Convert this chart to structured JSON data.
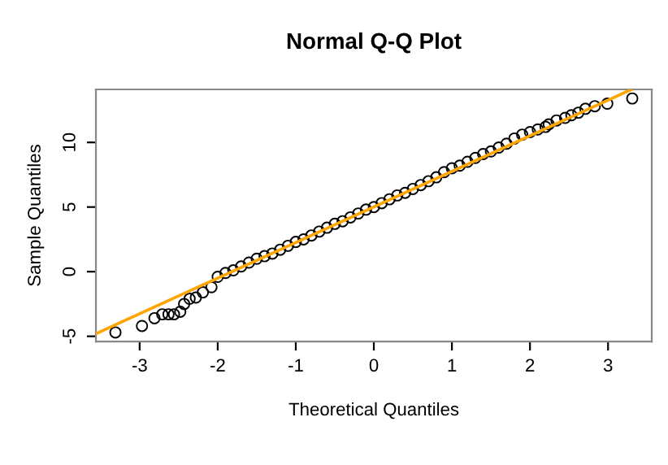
{
  "chart_data": {
    "type": "scatter",
    "title": "Normal Q-Q Plot",
    "xlabel": "Theoretical Quantiles",
    "ylabel": "Sample Quantiles",
    "xlim": [
      -3.56,
      3.56
    ],
    "ylim": [
      -5.4,
      14.1
    ],
    "xticks": [
      -3,
      -2,
      -1,
      0,
      1,
      2,
      3
    ],
    "yticks": [
      -5,
      0,
      5,
      10
    ],
    "grid": false,
    "marker": "circle",
    "series": [
      {
        "color": "#000000",
        "x": [
          -3.31,
          -2.97,
          -2.81,
          -2.71,
          -2.63,
          -2.56,
          -2.48,
          -2.43,
          -2.36,
          -2.28,
          -2.19,
          -2.08,
          -2.0,
          -1.9,
          -1.8,
          -1.7,
          -1.6,
          -1.5,
          -1.4,
          -1.3,
          -1.2,
          -1.1,
          -1.0,
          -0.9,
          -0.8,
          -0.7,
          -0.6,
          -0.5,
          -0.4,
          -0.3,
          -0.2,
          -0.1,
          0,
          0.1,
          0.2,
          0.3,
          0.4,
          0.5,
          0.6,
          0.7,
          0.8,
          0.9,
          1.0,
          1.1,
          1.2,
          1.3,
          1.4,
          1.5,
          1.6,
          1.7,
          1.8,
          1.9,
          2.0,
          2.1,
          2.2,
          2.24,
          2.34,
          2.45,
          2.53,
          2.62,
          2.71,
          2.83,
          2.99,
          3.31
        ],
        "values": [
          -4.7,
          -4.2,
          -3.6,
          -3.3,
          -3.3,
          -3.3,
          -3.1,
          -2.5,
          -2.1,
          -2.0,
          -1.6,
          -1.2,
          -0.4,
          -0.1,
          0.1,
          0.4,
          0.7,
          1.0,
          1.2,
          1.4,
          1.7,
          2.0,
          2.3,
          2.5,
          2.8,
          3.1,
          3.4,
          3.7,
          3.9,
          4.2,
          4.5,
          4.8,
          5.0,
          5.3,
          5.6,
          5.9,
          6.1,
          6.4,
          6.7,
          7.0,
          7.3,
          7.7,
          8.0,
          8.2,
          8.5,
          8.8,
          9.1,
          9.3,
          9.6,
          9.9,
          10.3,
          10.6,
          10.8,
          11.0,
          11.2,
          11.4,
          11.7,
          11.9,
          12.1,
          12.3,
          12.6,
          12.8,
          13.0,
          13.4
        ]
      },
      {
        "type": "line",
        "color": "#ffa500",
        "x": [
          -3.56,
          3.3
        ],
        "values": [
          -4.8,
          14.1
        ],
        "marker": "none",
        "line_style": "solid"
      }
    ]
  }
}
